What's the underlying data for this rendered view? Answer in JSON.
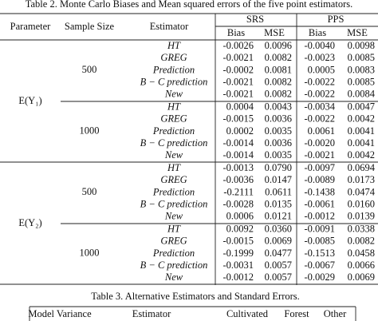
{
  "table2": {
    "caption": "Table 2.  Monte Carlo Biases and Mean squared errors of the five point estimators.",
    "header": {
      "parameter": "Parameter",
      "sample_size": "Sample Size",
      "estimator": "Estimator",
      "srs": "SRS",
      "pps": "PPS",
      "subheaders": [
        "Bias",
        "MSE",
        "Bias",
        "MSE"
      ]
    },
    "groups": [
      {
        "parameter": "E(Y₁)",
        "blocks": [
          {
            "sample_size": "500",
            "rows": [
              {
                "estimator": "HT",
                "values": [
                  "-0.0026",
                  "0.0096",
                  "-0.0040",
                  "0.0098"
                ]
              },
              {
                "estimator": "GREG",
                "values": [
                  "-0.0021",
                  "0.0082",
                  "-0.0023",
                  "0.0085"
                ]
              },
              {
                "estimator": "Prediction",
                "values": [
                  "-0.0002",
                  "0.0081",
                  "0.0005",
                  "0.0083"
                ]
              },
              {
                "estimator": "B − C prediction",
                "values": [
                  "-0.0021",
                  "0.0082",
                  "-0.0022",
                  "0.0085"
                ]
              },
              {
                "estimator": "New",
                "values": [
                  "-0.0021",
                  "0.0082",
                  "-0.0022",
                  "0.0084"
                ]
              }
            ]
          },
          {
            "sample_size": "1000",
            "rows": [
              {
                "estimator": "HT",
                "values": [
                  "0.0004",
                  "0.0043",
                  "-0.0034",
                  "0.0047"
                ]
              },
              {
                "estimator": "GREG",
                "values": [
                  "-0.0015",
                  "0.0036",
                  "-0.0022",
                  "0.0042"
                ]
              },
              {
                "estimator": "Prediction",
                "values": [
                  "0.0002",
                  "0.0035",
                  "0.0061",
                  "0.0041"
                ]
              },
              {
                "estimator": "B − C prediction",
                "values": [
                  "-0.0014",
                  "0.0036",
                  "-0.0020",
                  "0.0041"
                ]
              },
              {
                "estimator": "New",
                "values": [
                  "-0.0014",
                  "0.0035",
                  "-0.0021",
                  "0.0042"
                ]
              }
            ]
          }
        ]
      },
      {
        "parameter": "E(Y₂)",
        "blocks": [
          {
            "sample_size": "500",
            "rows": [
              {
                "estimator": "HT",
                "values": [
                  "-0.0013",
                  "0.0790",
                  "-0.0097",
                  "0.0694"
                ]
              },
              {
                "estimator": "GREG",
                "values": [
                  "-0.0036",
                  "0.0147",
                  "-0.0089",
                  "0.0173"
                ]
              },
              {
                "estimator": "Prediction",
                "values": [
                  "-0.2111",
                  "0.0611",
                  "-0.1438",
                  "0.0474"
                ]
              },
              {
                "estimator": "B − C prediction",
                "values": [
                  "-0.0028",
                  "0.0135",
                  "-0.0061",
                  "0.0160"
                ]
              },
              {
                "estimator": "New",
                "values": [
                  "0.0006",
                  "0.0121",
                  "-0.0012",
                  "0.0139"
                ]
              }
            ]
          },
          {
            "sample_size": "1000",
            "rows": [
              {
                "estimator": "HT",
                "values": [
                  "0.0092",
                  "0.0360",
                  "-0.0091",
                  "0.0338"
                ]
              },
              {
                "estimator": "GREG",
                "values": [
                  "-0.0015",
                  "0.0069",
                  "-0.0085",
                  "0.0082"
                ]
              },
              {
                "estimator": "Prediction",
                "values": [
                  "-0.1999",
                  "0.0477",
                  "-0.1513",
                  "0.0458"
                ]
              },
              {
                "estimator": "B − C prediction",
                "values": [
                  "-0.0031",
                  "0.0057",
                  "-0.0067",
                  "0.0066"
                ]
              },
              {
                "estimator": "New",
                "values": [
                  "-0.0012",
                  "0.0057",
                  "-0.0029",
                  "0.0069"
                ]
              }
            ]
          }
        ]
      }
    ]
  },
  "table3": {
    "caption": "Table 3.  Alternative Estimators and Standard Errors.",
    "header": [
      "Model Variance",
      "Estimator",
      "Cultivated",
      "Forest",
      "Other"
    ]
  }
}
